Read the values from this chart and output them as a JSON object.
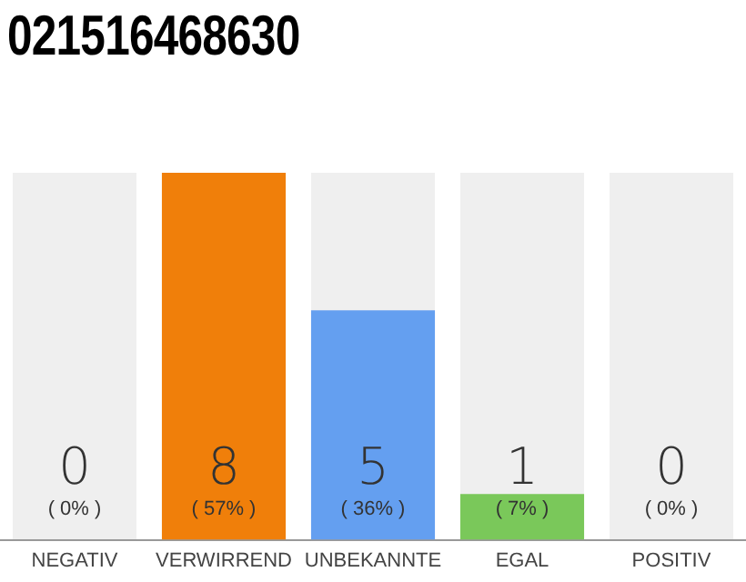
{
  "chart_data": {
    "type": "bar",
    "title": "021516468630",
    "categories": [
      "NEGATIV",
      "VERWIRREND",
      "UNBEKANNTE",
      "EGAL",
      "POSITIV"
    ],
    "values": [
      0,
      8,
      5,
      1,
      0
    ],
    "colors": [
      "#aaaaaa",
      "#f07f0a",
      "#649ff0",
      "#7ac85a",
      "#aaaaaa"
    ],
    "value_labels": [
      "0\n( 0% )",
      "8\n( 57% )",
      "5\n( 36% )",
      "1\n( 7% )",
      "0\n( 0% )"
    ],
    "tick_labels": "x",
    "grid": false,
    "legend": false
  }
}
